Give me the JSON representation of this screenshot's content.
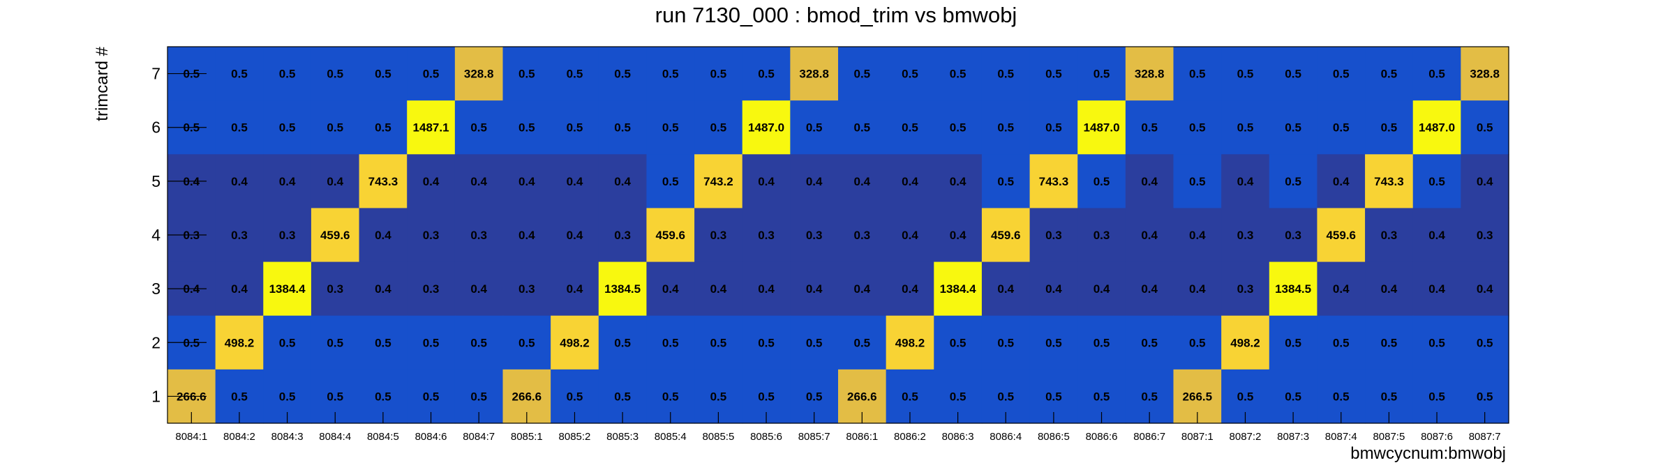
{
  "chart_data": {
    "type": "heatmap",
    "title": "run 7130_000 : bmod_trim vs bmwobj",
    "xlabel": "bmwcycnum:bmwobj",
    "ylabel": "trimcard #",
    "x_categories": [
      "8084:1",
      "8084:2",
      "8084:3",
      "8084:4",
      "8084:5",
      "8084:6",
      "8084:7",
      "8085:1",
      "8085:2",
      "8085:3",
      "8085:4",
      "8085:5",
      "8085:6",
      "8085:7",
      "8086:1",
      "8086:2",
      "8086:3",
      "8086:4",
      "8086:5",
      "8086:6",
      "8086:7",
      "8087:1",
      "8087:2",
      "8087:3",
      "8087:4",
      "8087:5",
      "8087:6",
      "8087:7"
    ],
    "y_categories": [
      "7",
      "6",
      "5",
      "4",
      "3",
      "2",
      "1"
    ],
    "grid": false,
    "legend": "none",
    "colors": {
      "low_dark": "#2b3e9e",
      "low_light": "#1750cc",
      "mid_orange": "#e3bd45",
      "high_yellow": "#f8d334",
      "peak_yellow": "#f8f80f"
    },
    "values": [
      [
        "0.5",
        "0.5",
        "0.5",
        "0.5",
        "0.5",
        "0.5",
        "328.8",
        "0.5",
        "0.5",
        "0.5",
        "0.5",
        "0.5",
        "0.5",
        "328.8",
        "0.5",
        "0.5",
        "0.5",
        "0.5",
        "0.5",
        "0.5",
        "328.8",
        "0.5",
        "0.5",
        "0.5",
        "0.5",
        "0.5",
        "0.5",
        "328.8"
      ],
      [
        "0.5",
        "0.5",
        "0.5",
        "0.5",
        "0.5",
        "1487.1",
        "0.5",
        "0.5",
        "0.5",
        "0.5",
        "0.5",
        "0.5",
        "1487.0",
        "0.5",
        "0.5",
        "0.5",
        "0.5",
        "0.5",
        "0.5",
        "1487.0",
        "0.5",
        "0.5",
        "0.5",
        "0.5",
        "0.5",
        "0.5",
        "1487.0",
        "0.5"
      ],
      [
        "0.4",
        "0.4",
        "0.4",
        "0.4",
        "743.3",
        "0.4",
        "0.4",
        "0.4",
        "0.4",
        "0.4",
        "0.5",
        "743.2",
        "0.4",
        "0.4",
        "0.4",
        "0.4",
        "0.4",
        "0.5",
        "743.3",
        "0.5",
        "0.4",
        "0.5",
        "0.4",
        "0.5",
        "0.4",
        "743.3",
        "0.5",
        "0.4"
      ],
      [
        "0.3",
        "0.3",
        "0.3",
        "459.6",
        "0.4",
        "0.3",
        "0.3",
        "0.4",
        "0.4",
        "0.3",
        "459.6",
        "0.3",
        "0.3",
        "0.3",
        "0.3",
        "0.4",
        "0.4",
        "459.6",
        "0.3",
        "0.3",
        "0.4",
        "0.4",
        "0.3",
        "0.3",
        "459.6",
        "0.3",
        "0.4",
        "0.3"
      ],
      [
        "0.4",
        "0.4",
        "1384.4",
        "0.3",
        "0.4",
        "0.3",
        "0.4",
        "0.3",
        "0.4",
        "1384.5",
        "0.4",
        "0.4",
        "0.4",
        "0.4",
        "0.4",
        "0.4",
        "1384.4",
        "0.4",
        "0.4",
        "0.4",
        "0.4",
        "0.4",
        "0.3",
        "1384.5",
        "0.4",
        "0.4",
        "0.4",
        "0.4"
      ],
      [
        "0.5",
        "498.2",
        "0.5",
        "0.5",
        "0.5",
        "0.5",
        "0.5",
        "0.5",
        "498.2",
        "0.5",
        "0.5",
        "0.5",
        "0.5",
        "0.5",
        "0.5",
        "498.2",
        "0.5",
        "0.5",
        "0.5",
        "0.5",
        "0.5",
        "0.5",
        "498.2",
        "0.5",
        "0.5",
        "0.5",
        "0.5",
        "0.5"
      ],
      [
        "266.6",
        "0.5",
        "0.5",
        "0.5",
        "0.5",
        "0.5",
        "0.5",
        "266.6",
        "0.5",
        "0.5",
        "0.5",
        "0.5",
        "0.5",
        "0.5",
        "266.6",
        "0.5",
        "0.5",
        "0.5",
        "0.5",
        "0.5",
        "0.5",
        "266.5",
        "0.5",
        "0.5",
        "0.5",
        "0.5",
        "0.5",
        "0.5"
      ]
    ]
  }
}
